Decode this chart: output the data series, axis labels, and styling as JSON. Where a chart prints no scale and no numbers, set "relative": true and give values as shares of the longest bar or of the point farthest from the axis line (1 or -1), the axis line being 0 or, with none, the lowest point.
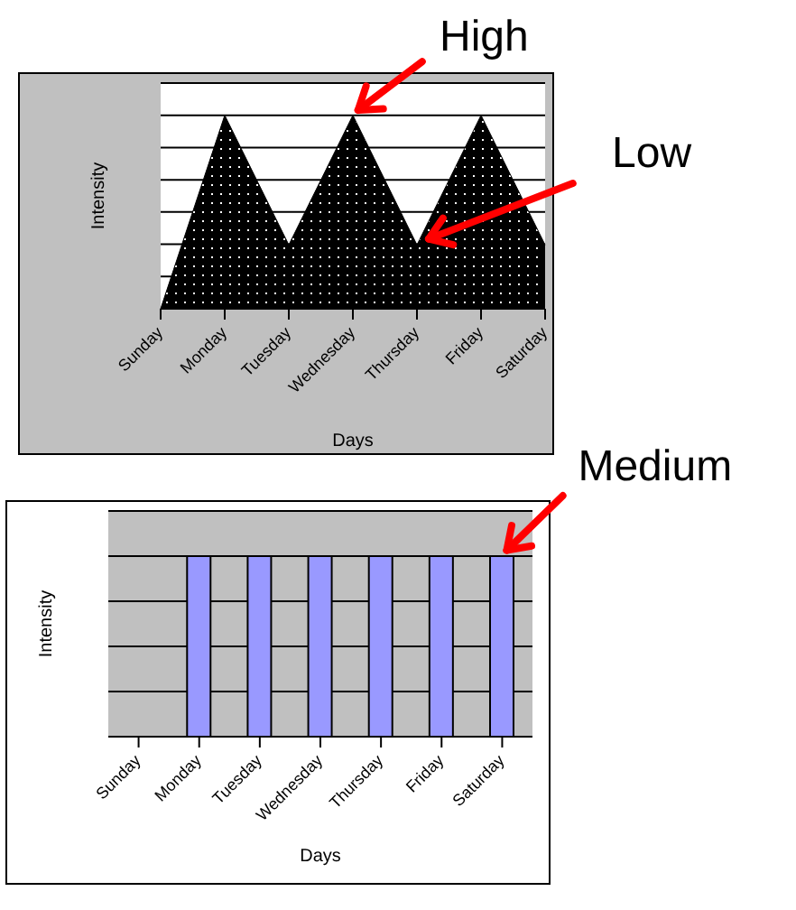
{
  "chart_data": [
    {
      "type": "area",
      "relative": true,
      "categories": [
        "Sunday",
        "Monday",
        "Tuesday",
        "Wednesday",
        "Thursday",
        "Friday",
        "Saturday"
      ],
      "values": [
        0,
        1,
        0.33,
        1,
        0.33,
        1,
        0.33
      ],
      "color": "#000000",
      "xlabel": "Days",
      "ylabel": "Intensity",
      "grid": "y",
      "annotations": [
        {
          "text": "High",
          "x": "Wednesday",
          "y": 1
        },
        {
          "text": "Low",
          "x": "Thursday",
          "y": 0.33
        }
      ]
    },
    {
      "type": "bar",
      "relative": true,
      "categories": [
        "Sunday",
        "Monday",
        "Tuesday",
        "Wednesday",
        "Thursday",
        "Friday",
        "Saturday"
      ],
      "values": [
        0,
        1,
        1,
        1,
        1,
        1,
        1
      ],
      "color": "#9999ff",
      "xlabel": "Days",
      "ylabel": "Intensity",
      "grid": "y",
      "annotations": [
        {
          "text": "Medium",
          "x": "Saturday",
          "y": 1
        }
      ]
    }
  ]
}
